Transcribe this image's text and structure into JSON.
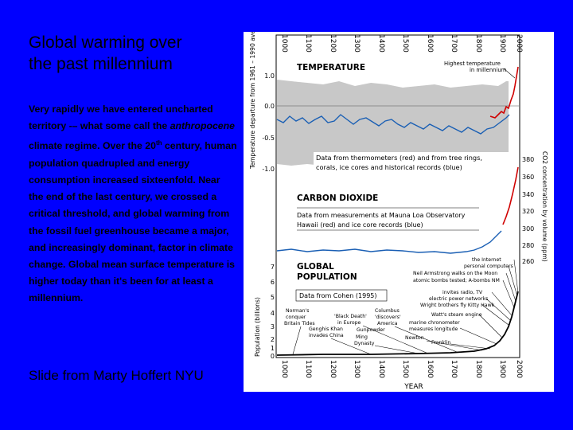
{
  "slide": {
    "title_line1": "Global warming over",
    "title_line2": "the past millennium",
    "body_p1": "Very rapidly we have entered uncharted territory -– what some call the ",
    "body_em": "anthropocene",
    "body_p2": " climate regime. Over the 20",
    "body_sup": "th",
    "body_p3": " century, human population quadrupled and energy consumption increased sixteenfold. Near the end of the last century, we crossed a critical threshold, and global warming from the fossil fuel greenhouse became a major, and increasingly dominant, factor in climate change. Global mean surface temperature is higher today than it's been for at least a millennium.",
    "credit": "Slide from Marty Hoffert  NYU"
  },
  "figure": {
    "x_tick_labels": [
      "1000",
      "1100",
      "1200",
      "1300",
      "1400",
      "1500",
      "1600",
      "1700",
      "1800",
      "1900",
      "2000"
    ],
    "x_axis_label": "YEAR",
    "temperature": {
      "panel_title": "TEMPERATURE",
      "y_axis_label": "Temperature departure from 1961 – 1990 average (°C)",
      "y_ticks": [
        "1.0",
        "0.0",
        "-0.5",
        "-1.0"
      ],
      "highest_label_line1": "Highest temperature",
      "highest_label_line2": "in millennium",
      "note_line1": "Data from thermometers (red) and from tree rings,",
      "note_line2": "corals, ice cores and historical records (blue)"
    },
    "co2": {
      "panel_title": "CARBON DIOXIDE",
      "y_axis_label": "CO2 concentration by volume (ppm)",
      "y_ticks": [
        "380",
        "360",
        "340",
        "320",
        "300",
        "280",
        "260"
      ],
      "note_line1": "Data from measurements at Mauna Loa Observatory",
      "note_line2": "Hawaii (red) and ice core records (blue)"
    },
    "population": {
      "panel_title_line1": "GLOBAL",
      "panel_title_line2": "POPULATION",
      "y_axis_label": "Population (billions)",
      "y_ticks": [
        "7",
        "6",
        "5",
        "4",
        "3",
        "2",
        "1",
        "0"
      ],
      "source": "Data from Cohen (1995)",
      "annotations": {
        "internet": "the Internet",
        "pc_line1": "personal computers",
        "moon": "Neil Armstrong walks on the Moon",
        "atomic": "atomic bombs tested; A-bombs NM",
        "tv": "invites radio, TV",
        "power": "electric power networks",
        "wright": "Wright brothers fly Kitty Hawk",
        "watt": "Watt's steam engine",
        "chronometer": "marine chronometer",
        "longitude": "measures longitude",
        "newton": "Newton",
        "franklin": "Franklin",
        "columbus_1": "Columbus",
        "columbus_2": "'discovers'",
        "columbus_3": "America",
        "black_death_1": "'Black Death'",
        "black_death_2": "in Europe",
        "gunpowder": "Gunpowder",
        "ming_1": "Ming",
        "ming_2": "Dynasty",
        "genghis_1": "Genghis Khan",
        "genghis_2": "invades China",
        "norman_1": "Norman's",
        "norman_2": "conquer",
        "norman_3": "Britain Tides"
      }
    }
  }
}
